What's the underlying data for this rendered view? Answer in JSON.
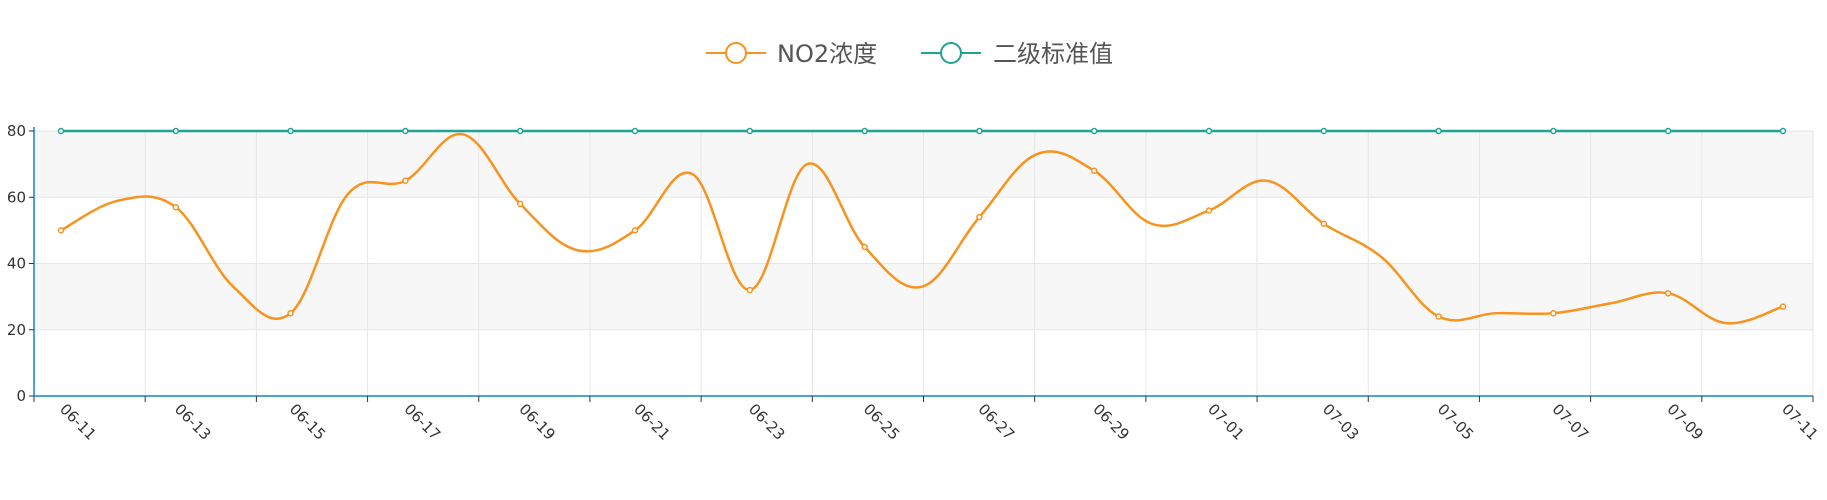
{
  "chart_data": {
    "type": "line",
    "title": "",
    "xlabel": "",
    "ylabel": "",
    "ylim": [
      0,
      80
    ],
    "yticks": [
      0,
      20,
      40,
      60,
      80
    ],
    "grid": "horizontal and vertical",
    "legend_position": "top-center",
    "x": [
      "06-11",
      "06-12",
      "06-13",
      "06-14",
      "06-15",
      "06-16",
      "06-17",
      "06-18",
      "06-19",
      "06-20",
      "06-21",
      "06-22",
      "06-23",
      "06-24",
      "06-25",
      "06-26",
      "06-27",
      "06-28",
      "06-29",
      "06-30",
      "07-01",
      "07-02",
      "07-03",
      "07-04",
      "07-05",
      "07-06",
      "07-07",
      "07-08",
      "07-09",
      "07-10",
      "07-11"
    ],
    "x_tick_labels": [
      "06-11",
      "06-13",
      "06-15",
      "06-17",
      "06-19",
      "06-21",
      "06-23",
      "06-25",
      "06-27",
      "06-29",
      "07-01",
      "07-03",
      "07-05",
      "07-07",
      "07-09",
      "07-11"
    ],
    "series": [
      {
        "name": "NO2浓度",
        "color": "#f7931e",
        "values": [
          50,
          59,
          57,
          33,
          25,
          61,
          65,
          79,
          58,
          44,
          50,
          67,
          32,
          70,
          45,
          33,
          54,
          73,
          68,
          52,
          56,
          65,
          52,
          42,
          24,
          25,
          25,
          28,
          31,
          22,
          27
        ]
      },
      {
        "name": "二级标准值",
        "color": "#1fa397",
        "values": [
          80,
          80,
          80,
          80,
          80,
          80,
          80,
          80,
          80,
          80,
          80,
          80,
          80,
          80,
          80,
          80,
          80,
          80,
          80,
          80,
          80,
          80,
          80,
          80,
          80,
          80,
          80,
          80,
          80,
          80,
          80
        ]
      }
    ],
    "colors": {
      "axis": "#4aa3df",
      "grid": "#e6e6e6",
      "band": "#f7f7f7"
    }
  }
}
